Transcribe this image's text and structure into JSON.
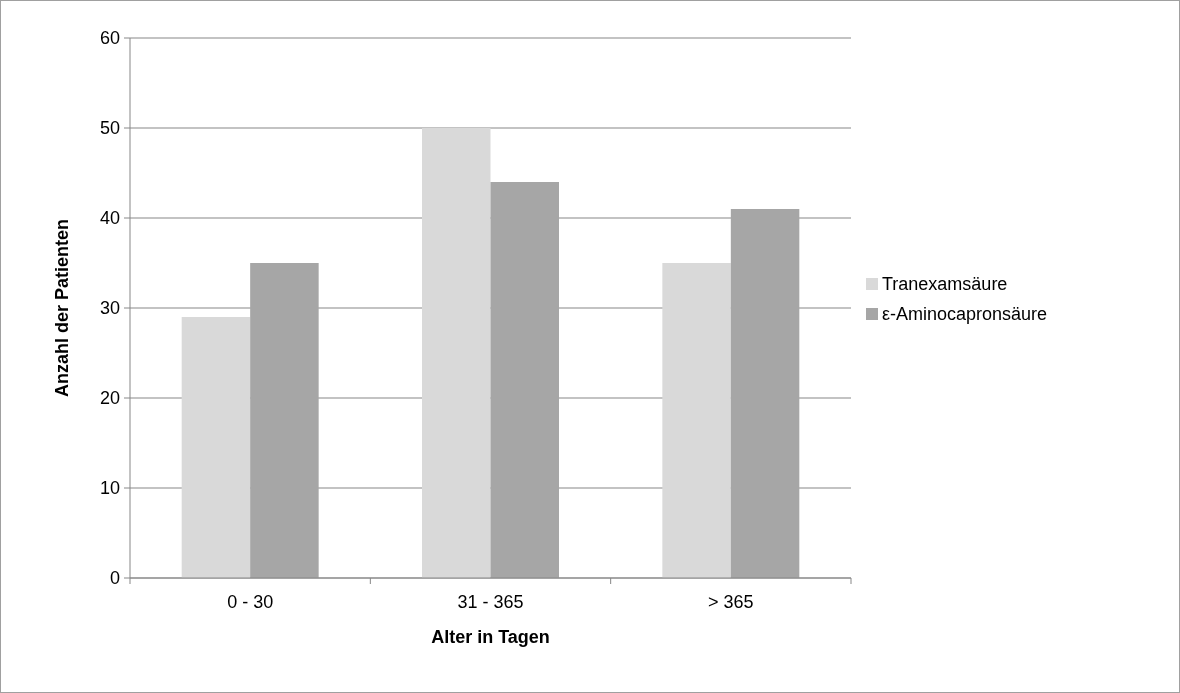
{
  "chart_data": {
    "type": "bar",
    "xlabel": "Alter in Tagen",
    "ylabel": "Anzahl der Patienten",
    "categories": [
      "0 - 30",
      "31 - 365",
      "> 365"
    ],
    "series": [
      {
        "name": "Tranexamsäure",
        "color": "#d9d9d9",
        "values": [
          29,
          50,
          35
        ]
      },
      {
        "name": "ε-Aminocapronsäure",
        "color": "#a6a6a6",
        "values": [
          35,
          44,
          41
        ]
      }
    ],
    "ylim": [
      0,
      60
    ],
    "yticks": [
      0,
      10,
      20,
      30,
      40,
      50,
      60
    ],
    "grid": "y",
    "legend": "right"
  }
}
